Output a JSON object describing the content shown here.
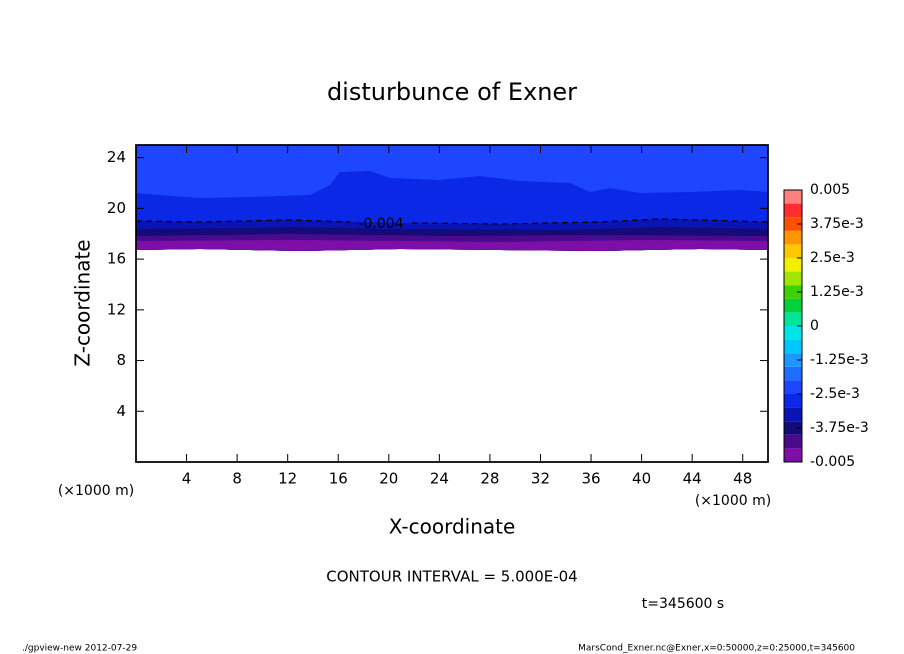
{
  "chart_data": {
    "type": "contour",
    "title": "disturbunce of Exner",
    "xlabel": "X-coordinate",
    "ylabel": "Z-coordinate",
    "x_unit": "(×1000 m)",
    "y_unit": "(×1000 m)",
    "xlim": [
      0,
      50
    ],
    "ylim": [
      0,
      25
    ],
    "xticks": [
      4,
      8,
      12,
      16,
      20,
      24,
      28,
      32,
      36,
      40,
      44,
      48
    ],
    "yticks": [
      4,
      8,
      12,
      16,
      20,
      24
    ],
    "contour_labels": [
      -0.004
    ],
    "contour_interval": "CONTOUR INTERVAL = 5.000E-04",
    "time": "t=345600 s",
    "colorbar": {
      "levels": [
        -0.005,
        -0.0045,
        -0.004,
        -0.0035,
        -0.003,
        -0.0025,
        -0.002,
        -0.0015,
        -0.001,
        -0.0005,
        0,
        0.0005,
        0.001,
        0.0015,
        0.002,
        0.0025,
        0.003,
        0.0035,
        0.004,
        0.0045,
        0.005
      ],
      "colors": [
        "#7d0fa8",
        "#4a0a8c",
        "#140a78",
        "#0a14b4",
        "#0a28e6",
        "#1e46ff",
        "#1e6eff",
        "#1e96ff",
        "#00c8ff",
        "#00e6e6",
        "#00e696",
        "#00d23c",
        "#3cd200",
        "#a0e600",
        "#f0f000",
        "#ffc800",
        "#ff9600",
        "#ff5000",
        "#ff2d2d",
        "#ff8080"
      ],
      "ticks": [
        0.005,
        {
          "value": 0.00375,
          "label": "3.75e-3"
        },
        {
          "value": 0.0025,
          "label": "2.5e-3"
        },
        {
          "value": 0.00125,
          "label": "1.25e-3"
        },
        0,
        {
          "value": -0.00125,
          "label": "-1.25e-3"
        },
        {
          "value": -0.0025,
          "label": "-2.5e-3"
        },
        {
          "value": -0.00375,
          "label": "-3.75e-3"
        },
        -0.005
      ]
    }
  },
  "footer": {
    "left": "./gpview-new  2012-07-29",
    "right": "MarsCond_Exner.nc@Exner,x=0:50000,z=0:25000,t=345600"
  }
}
